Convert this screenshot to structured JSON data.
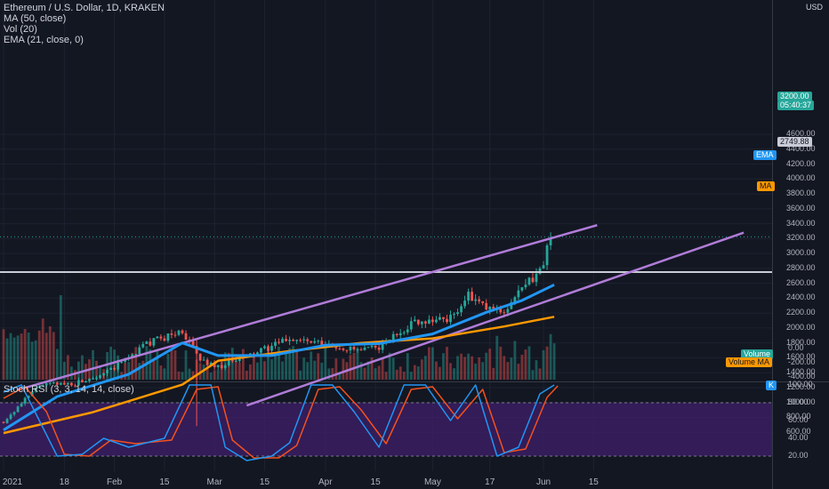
{
  "legend": {
    "title": "Ethereum / U.S. Dollar, 1D, KRAKEN",
    "ma": "MA (50, close)",
    "vol": "Vol (20)",
    "ema": "EMA (21, close, 0)"
  },
  "stoch_legend": "Stoch RSI (3, 3, 14, 14, close)",
  "currency": "USD",
  "price_axis": {
    "ticks": [
      "4600.00",
      "4400.00",
      "4200.00",
      "4000.00",
      "3800.00",
      "3600.00",
      "3400.00",
      "3200.00",
      "3000.00",
      "2800.00",
      "2600.00",
      "2400.00",
      "2200.00",
      "2000.00",
      "1800.00",
      "1600.00",
      "1400.00",
      "1200.00",
      "1000.00",
      "800.00",
      "600.00"
    ]
  },
  "volume_axis": {
    "ticks": [
      "0.00",
      "-200.00",
      "-400.00"
    ]
  },
  "stoch_axis": {
    "ticks": [
      "100.00",
      "80.00",
      "60.00",
      "40.00",
      "20.00"
    ]
  },
  "x_labels": [
    "2021",
    "18",
    "Feb",
    "15",
    "Mar",
    "15",
    "Apr",
    "15",
    "May",
    "17",
    "Jun",
    "15"
  ],
  "tags": {
    "price": "3200.00",
    "countdown": "05:40:37",
    "level": "2749.88",
    "ema": "EMA",
    "ma": "MA",
    "volume": "Volume",
    "volume_ma": "Volume MA",
    "stoch_value": "K"
  },
  "colors": {
    "background": "#131722",
    "up": "#26a69a",
    "down": "#ef5350",
    "ema": "#2196f3",
    "ma": "#ff9800",
    "channel": "#b07cd8",
    "level_line": "#c9ccd6",
    "stoch_k": "#2196f3",
    "stoch_d": "#f4511e",
    "stoch_band": "#3f1f6b"
  },
  "chart_data": {
    "type": "candlestick",
    "price_range": [
      500,
      4650
    ],
    "x_range_days": [
      0,
      174
    ],
    "horizontal_level": 2749.88,
    "channel_upper": {
      "start": [
        4,
        1170
      ],
      "end": [
        166,
        3380
      ]
    },
    "channel_lower": {
      "start": [
        68,
        960
      ],
      "end": [
        207,
        3280
      ]
    },
    "candles_sampled": [
      {
        "day": 0,
        "close": 740
      },
      {
        "day": 10,
        "close": 1230
      },
      {
        "day": 20,
        "close": 1260
      },
      {
        "day": 30,
        "close": 1430
      },
      {
        "day": 40,
        "close": 1790
      },
      {
        "day": 50,
        "close": 1960
      },
      {
        "day": 55,
        "close": 1570
      },
      {
        "day": 60,
        "close": 1480
      },
      {
        "day": 70,
        "close": 1650
      },
      {
        "day": 80,
        "close": 1860
      },
      {
        "day": 90,
        "close": 1770
      },
      {
        "day": 100,
        "close": 1690
      },
      {
        "day": 105,
        "close": 1750
      },
      {
        "day": 115,
        "close": 2090
      },
      {
        "day": 125,
        "close": 2130
      },
      {
        "day": 130,
        "close": 2430
      },
      {
        "day": 135,
        "close": 2260
      },
      {
        "day": 140,
        "close": 2230
      },
      {
        "day": 145,
        "close": 2520
      },
      {
        "day": 150,
        "close": 2760
      },
      {
        "day": 153,
        "close": 3200
      }
    ],
    "ema_sampled": [
      {
        "day": 0,
        "v": 630
      },
      {
        "day": 15,
        "v": 1080
      },
      {
        "day": 35,
        "v": 1380
      },
      {
        "day": 50,
        "v": 1800
      },
      {
        "day": 60,
        "v": 1630
      },
      {
        "day": 75,
        "v": 1630
      },
      {
        "day": 90,
        "v": 1770
      },
      {
        "day": 105,
        "v": 1790
      },
      {
        "day": 120,
        "v": 1920
      },
      {
        "day": 135,
        "v": 2210
      },
      {
        "day": 145,
        "v": 2370
      },
      {
        "day": 154,
        "v": 2580
      }
    ],
    "ma_sampled": [
      {
        "day": 0,
        "v": 590
      },
      {
        "day": 25,
        "v": 870
      },
      {
        "day": 50,
        "v": 1240
      },
      {
        "day": 60,
        "v": 1560
      },
      {
        "day": 80,
        "v": 1690
      },
      {
        "day": 100,
        "v": 1800
      },
      {
        "day": 120,
        "v": 1860
      },
      {
        "day": 140,
        "v": 2020
      },
      {
        "day": 154,
        "v": 2150
      }
    ],
    "stoch_range": [
      10,
      100
    ],
    "stoch_k_sampled": [
      {
        "day": 0,
        "v": 92
      },
      {
        "day": 5,
        "v": 100
      },
      {
        "day": 10,
        "v": 60
      },
      {
        "day": 15,
        "v": 20
      },
      {
        "day": 22,
        "v": 22
      },
      {
        "day": 28,
        "v": 40
      },
      {
        "day": 35,
        "v": 30
      },
      {
        "day": 45,
        "v": 40
      },
      {
        "day": 52,
        "v": 100
      },
      {
        "day": 58,
        "v": 100
      },
      {
        "day": 62,
        "v": 30
      },
      {
        "day": 68,
        "v": 15
      },
      {
        "day": 75,
        "v": 20
      },
      {
        "day": 80,
        "v": 35
      },
      {
        "day": 86,
        "v": 100
      },
      {
        "day": 92,
        "v": 100
      },
      {
        "day": 98,
        "v": 70
      },
      {
        "day": 105,
        "v": 30
      },
      {
        "day": 112,
        "v": 100
      },
      {
        "day": 118,
        "v": 100
      },
      {
        "day": 125,
        "v": 60
      },
      {
        "day": 132,
        "v": 100
      },
      {
        "day": 138,
        "v": 20
      },
      {
        "day": 144,
        "v": 30
      },
      {
        "day": 150,
        "v": 90
      },
      {
        "day": 154,
        "v": 100
      }
    ],
    "stoch_d_sampled": [
      {
        "day": 0,
        "v": 85
      },
      {
        "day": 6,
        "v": 98
      },
      {
        "day": 12,
        "v": 70
      },
      {
        "day": 17,
        "v": 22
      },
      {
        "day": 24,
        "v": 20
      },
      {
        "day": 30,
        "v": 38
      },
      {
        "day": 37,
        "v": 34
      },
      {
        "day": 47,
        "v": 38
      },
      {
        "day": 54,
        "v": 95
      },
      {
        "day": 60,
        "v": 98
      },
      {
        "day": 64,
        "v": 38
      },
      {
        "day": 70,
        "v": 18
      },
      {
        "day": 77,
        "v": 18
      },
      {
        "day": 82,
        "v": 32
      },
      {
        "day": 88,
        "v": 95
      },
      {
        "day": 94,
        "v": 98
      },
      {
        "day": 100,
        "v": 72
      },
      {
        "day": 107,
        "v": 34
      },
      {
        "day": 114,
        "v": 95
      },
      {
        "day": 120,
        "v": 98
      },
      {
        "day": 127,
        "v": 62
      },
      {
        "day": 134,
        "v": 95
      },
      {
        "day": 140,
        "v": 24
      },
      {
        "day": 146,
        "v": 28
      },
      {
        "day": 152,
        "v": 86
      },
      {
        "day": 155,
        "v": 99
      }
    ]
  }
}
